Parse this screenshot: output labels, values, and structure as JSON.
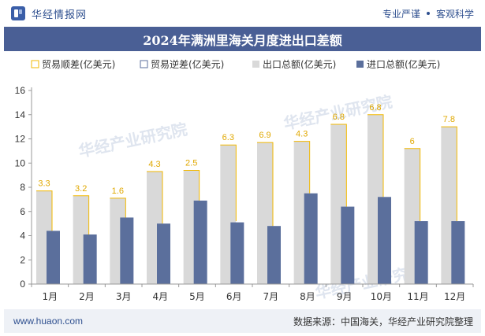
{
  "header": {
    "brand_name": "华经情报网",
    "slogan_left": "专业严谨",
    "slogan_right": "客观科学"
  },
  "title": "2024年满洲里海关月度进出口差额",
  "footer": {
    "website": "www.huaon.com",
    "source": "数据来源：中国海关，华经产业研究院整理"
  },
  "watermark": "华经产业研究院",
  "colors": {
    "export": "#d9d9d9",
    "import": "#5b6f9c",
    "surplus_line": "#f2b800",
    "deficit_line": "#5b6f9c",
    "title_bg": "#4a5f95",
    "brand": "#2e4f8f"
  },
  "chart_data": {
    "type": "bar",
    "categories": [
      "1月",
      "2月",
      "3月",
      "4月",
      "5月",
      "6月",
      "7月",
      "8月",
      "9月",
      "10月",
      "11月",
      "12月"
    ],
    "series": [
      {
        "name": "贸易顺差(亿美元)",
        "kind": "bracket",
        "values": [
          3.3,
          3.2,
          1.6,
          4.3,
          2.5,
          6.3,
          6.9,
          4.3,
          6.8,
          6.8,
          6,
          7.8
        ]
      },
      {
        "name": "贸易逆差(亿美元)",
        "kind": "bracket",
        "values": [
          0,
          0,
          0,
          0,
          0,
          0,
          0,
          0,
          0,
          0,
          0,
          0
        ]
      },
      {
        "name": "出口总额(亿美元)",
        "kind": "bar",
        "values": [
          7.7,
          7.3,
          7.1,
          9.3,
          9.4,
          11.5,
          11.7,
          11.8,
          13.2,
          14.0,
          11.2,
          13.0
        ]
      },
      {
        "name": "进口总额(亿美元)",
        "kind": "bar",
        "values": [
          4.4,
          4.1,
          5.5,
          5.0,
          6.9,
          5.1,
          4.8,
          7.5,
          6.4,
          7.2,
          5.2,
          5.2
        ]
      }
    ],
    "data_labels": [
      "3.3",
      "3.2",
      "1.6",
      "4.3",
      "2.5",
      "6.3",
      "6.9",
      "4.3",
      "6.8",
      "6.8",
      "6",
      "7.8"
    ],
    "ylim": [
      0,
      16
    ],
    "yticks": [
      0,
      2,
      4,
      6,
      8,
      10,
      12,
      14,
      16
    ],
    "grid": false,
    "legend_position": "top"
  }
}
